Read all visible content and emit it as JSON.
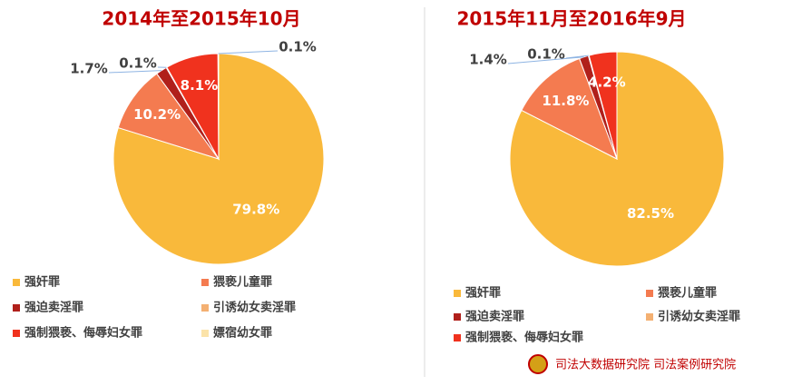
{
  "chart_data": [
    {
      "type": "pie",
      "title": "2014年至2015年10月",
      "categories": [
        "强奸罪",
        "猥亵儿童罪",
        "强迫卖淫罪",
        "引诱幼女卖淫罪",
        "强制猥亵、侮辱妇女罪",
        "嫖宿幼女罪"
      ],
      "values": [
        79.8,
        10.2,
        1.7,
        0.1,
        8.1,
        0.1
      ],
      "value_labels": [
        "79.8%",
        "10.2%",
        "1.7%",
        "0.1%",
        "8.1%",
        "0.1%"
      ],
      "colors": [
        "#F9B93B",
        "#F47B50",
        "#B0201B",
        "#F4B072",
        "#F0321E",
        "#FBE3A9"
      ]
    },
    {
      "type": "pie",
      "title": "2015年11月至2016年9月",
      "categories": [
        "强奸罪",
        "猥亵儿童罪",
        "强迫卖淫罪",
        "引诱幼女卖淫罪",
        "强制猥亵、侮辱妇女罪"
      ],
      "values": [
        82.5,
        11.8,
        1.4,
        0.1,
        4.2
      ],
      "value_labels": [
        "82.5%",
        "11.8%",
        "1.4%",
        "0.1%",
        "4.2%"
      ],
      "colors": [
        "#F9B93B",
        "#F47B50",
        "#B0201B",
        "#F4B072",
        "#F0321E"
      ]
    }
  ],
  "footer": "司法大数据研究院 司法案例研究院"
}
